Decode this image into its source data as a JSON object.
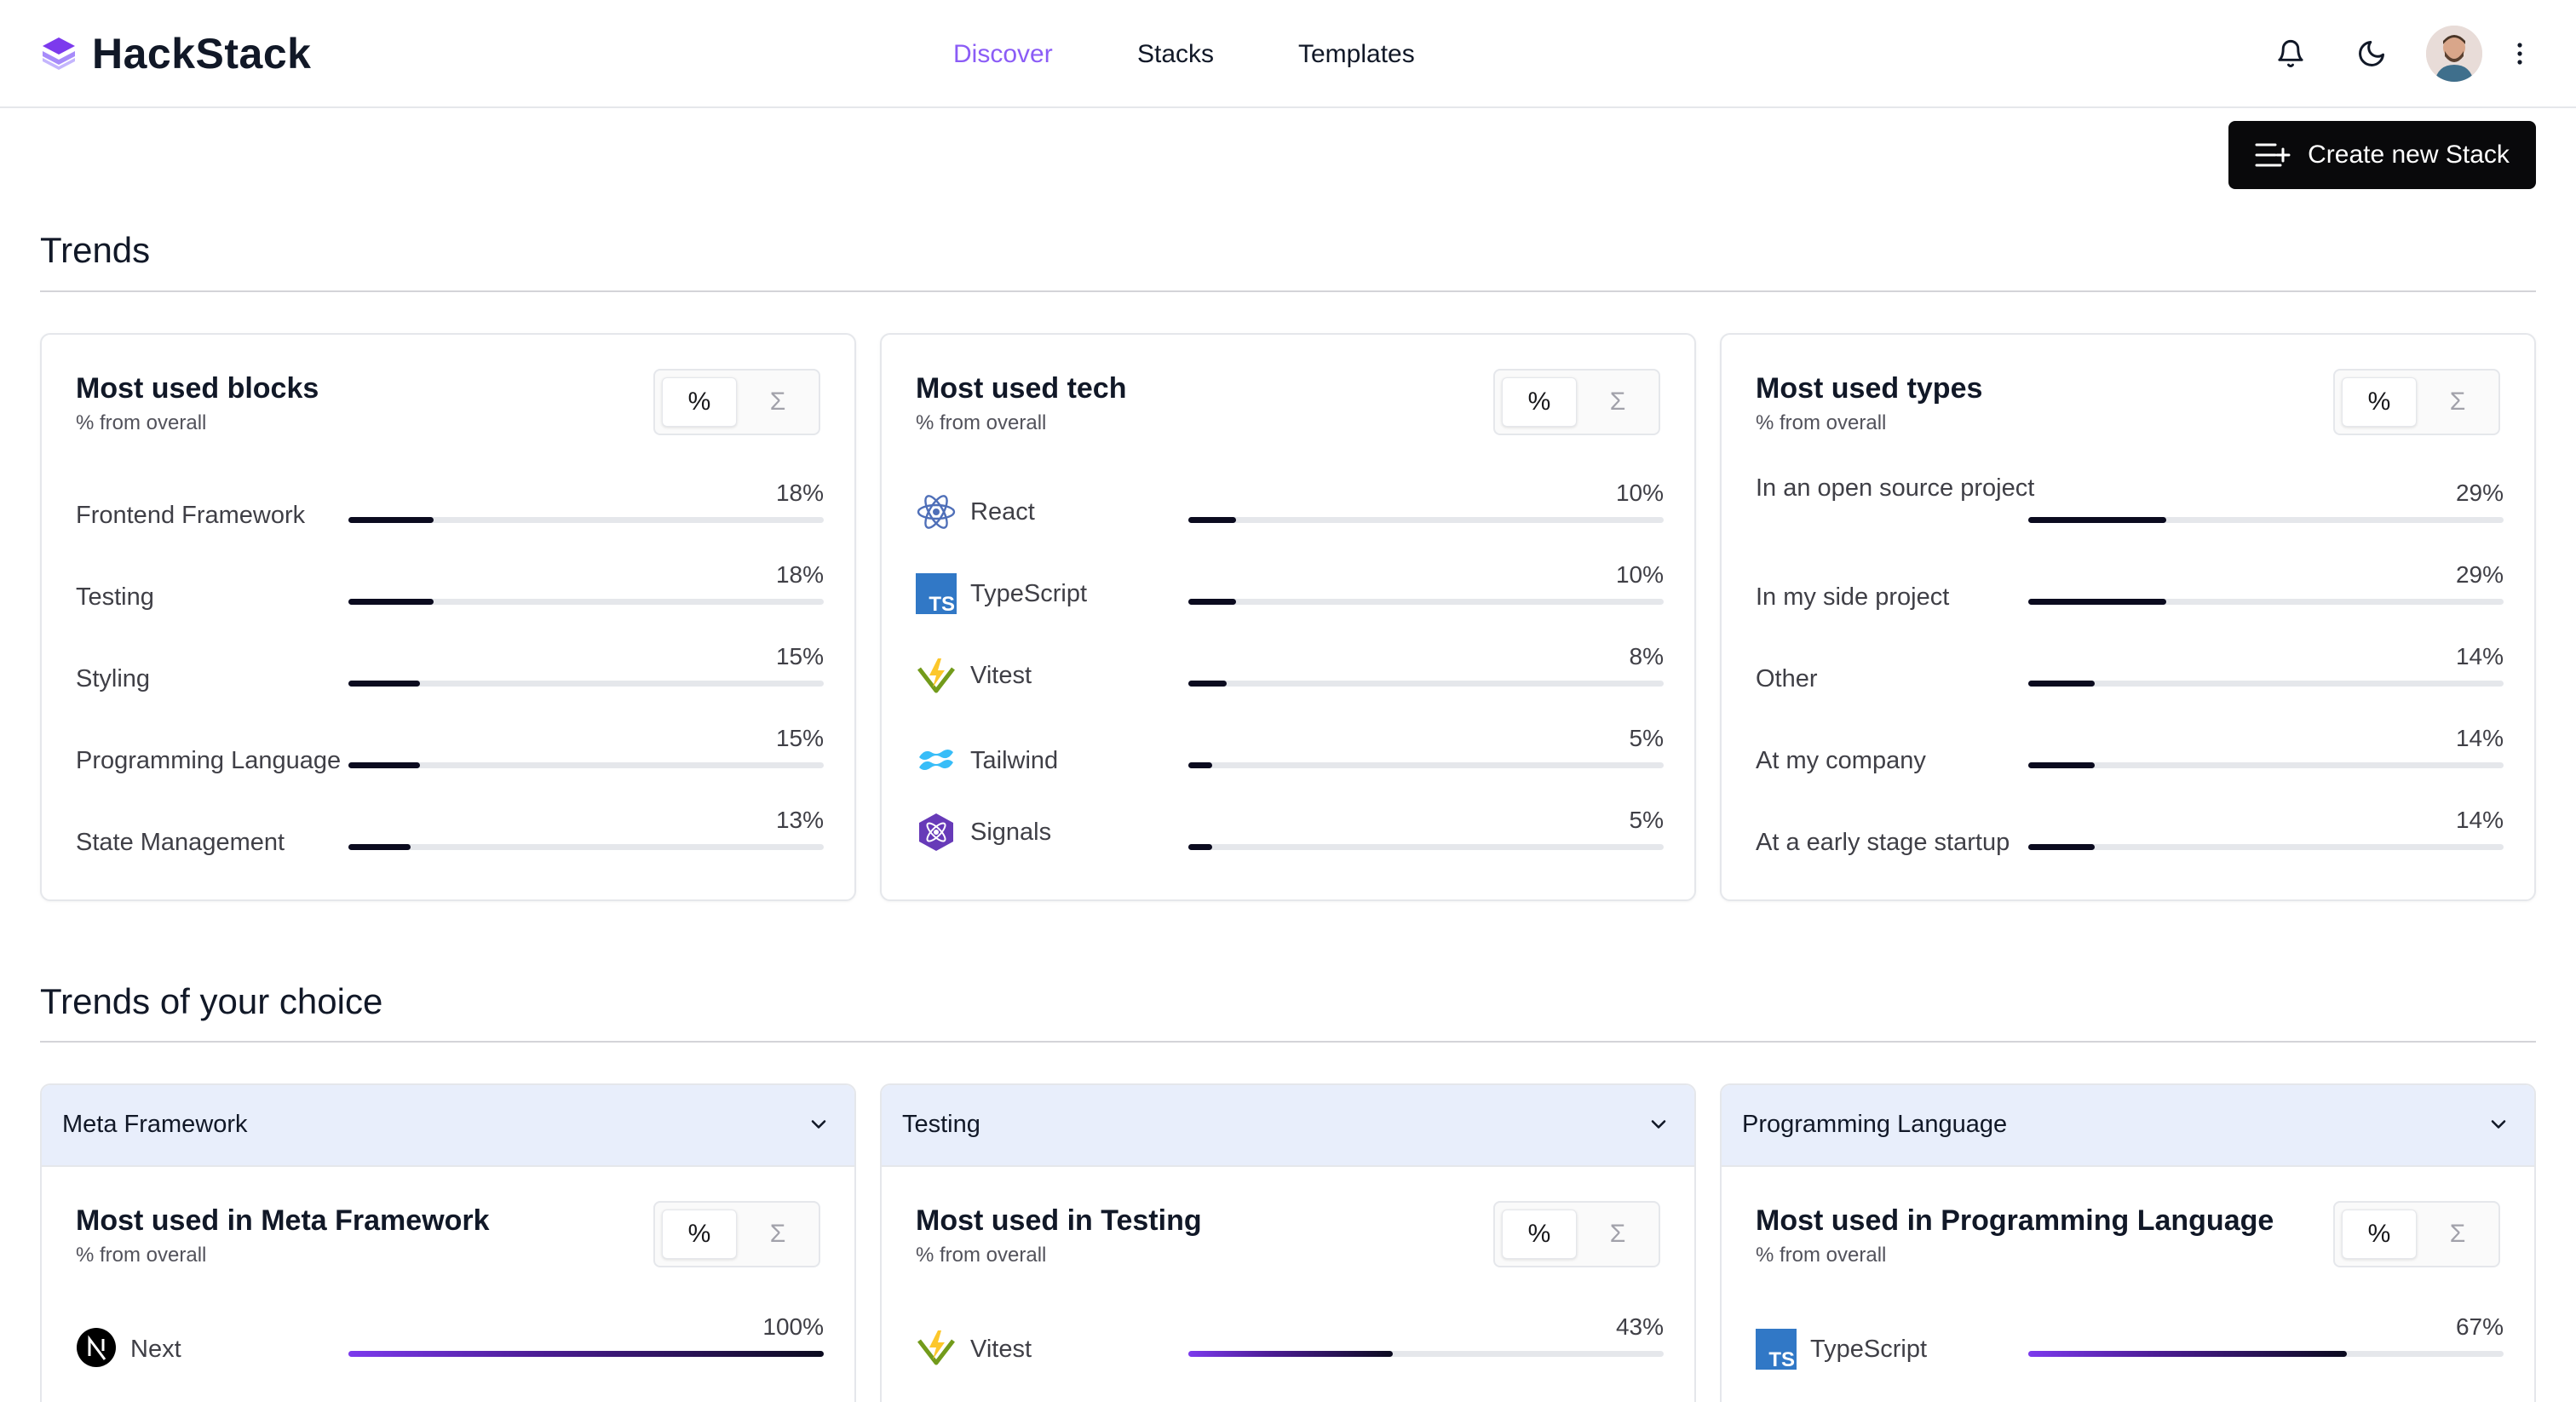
{
  "app": {
    "name": "HackStack"
  },
  "nav": {
    "discover": "Discover",
    "stacks": "Stacks",
    "templates": "Templates"
  },
  "actions": {
    "create_stack": "Create new Stack"
  },
  "trends": {
    "title": "Trends",
    "cards": [
      {
        "title": "Most used blocks",
        "subtitle": "% from overall",
        "toggle": {
          "percent": "%",
          "sum": "Σ"
        },
        "rows": [
          {
            "label": "Frontend Framework",
            "pct": "18%",
            "value": 18
          },
          {
            "label": "Testing",
            "pct": "18%",
            "value": 18
          },
          {
            "label": "Styling",
            "pct": "15%",
            "value": 15
          },
          {
            "label": "Programming Language",
            "pct": "15%",
            "value": 15
          },
          {
            "label": "State Management",
            "pct": "13%",
            "value": 13
          }
        ]
      },
      {
        "title": "Most used tech",
        "subtitle": "% from overall",
        "toggle": {
          "percent": "%",
          "sum": "Σ"
        },
        "rows": [
          {
            "label": "React",
            "pct": "10%",
            "value": 10,
            "icon": "react-icon"
          },
          {
            "label": "TypeScript",
            "pct": "10%",
            "value": 10,
            "icon": "typescript-icon"
          },
          {
            "label": "Vitest",
            "pct": "8%",
            "value": 8,
            "icon": "vitest-icon"
          },
          {
            "label": "Tailwind",
            "pct": "5%",
            "value": 5,
            "icon": "tailwind-icon"
          },
          {
            "label": "Signals",
            "pct": "5%",
            "value": 5,
            "icon": "signals-icon"
          }
        ]
      },
      {
        "title": "Most used types",
        "subtitle": "% from overall",
        "toggle": {
          "percent": "%",
          "sum": "Σ"
        },
        "rows": [
          {
            "label": "In an open source project",
            "pct": "29%",
            "value": 29
          },
          {
            "label": "In my side project",
            "pct": "29%",
            "value": 29
          },
          {
            "label": "Other",
            "pct": "14%",
            "value": 14
          },
          {
            "label": "At my company",
            "pct": "14%",
            "value": 14
          },
          {
            "label": "At a early stage startup",
            "pct": "14%",
            "value": 14
          }
        ]
      }
    ]
  },
  "choice": {
    "title": "Trends of your choice",
    "cards": [
      {
        "select": "Meta Framework",
        "title": "Most used in Meta Framework",
        "subtitle": "% from overall",
        "toggle": {
          "percent": "%",
          "sum": "Σ"
        },
        "rows": [
          {
            "label": "Next",
            "pct": "100%",
            "value": 100,
            "icon": "nextjs-icon"
          }
        ]
      },
      {
        "select": "Testing",
        "title": "Most used in Testing",
        "subtitle": "% from overall",
        "toggle": {
          "percent": "%",
          "sum": "Σ"
        },
        "rows": [
          {
            "label": "Vitest",
            "pct": "43%",
            "value": 43,
            "icon": "vitest-icon"
          }
        ]
      },
      {
        "select": "Programming Language",
        "title": "Most used in Programming Language",
        "subtitle": "% from overall",
        "toggle": {
          "percent": "%",
          "sum": "Σ"
        },
        "rows": [
          {
            "label": "TypeScript",
            "pct": "67%",
            "value": 67,
            "icon": "typescript-icon"
          }
        ]
      }
    ]
  },
  "colors": {
    "accent": "#8b5cf6",
    "bar": "#0b0b1f",
    "select_bg": "#e8eefb",
    "button_bg": "#09090b"
  }
}
